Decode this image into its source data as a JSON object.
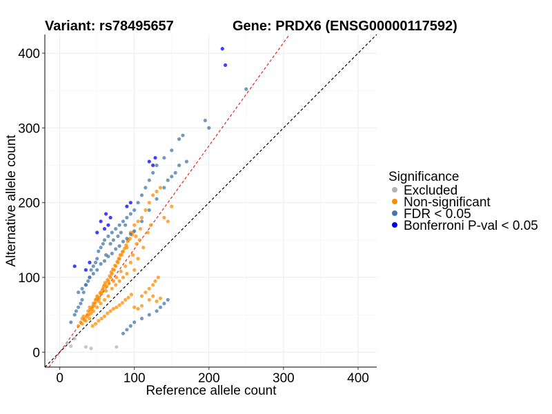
{
  "chart_data": {
    "type": "scatter",
    "titles": {
      "variant": "Variant: rs78495657",
      "gene": "Gene: PRDX6 (ENSG00000117592)"
    },
    "xlabel": "Reference allele count",
    "ylabel": "Alternative allele count",
    "xlim": [
      -20,
      425
    ],
    "ylim": [
      -20,
      425
    ],
    "x_ticks": [
      0,
      100,
      200,
      300,
      400
    ],
    "y_ticks": [
      0,
      100,
      200,
      300,
      400
    ],
    "grid": true,
    "reference_lines": [
      {
        "name": "identity",
        "slope": 1.0,
        "intercept": 0,
        "color": "#000000",
        "dash": "dashed"
      },
      {
        "name": "fit",
        "slope": 1.38,
        "intercept": 0,
        "color": "#e8231a",
        "dash": "dashed"
      }
    ],
    "legend": {
      "title": "Significance",
      "position": "right",
      "entries": [
        {
          "label": "Excluded",
          "color": "#b3b3b3"
        },
        {
          "label": "Non-significant",
          "color": "#ff8c00"
        },
        {
          "label": "FDR < 0.05",
          "color": "#4477aa"
        },
        {
          "label": "Bonferroni P-val < 0.05",
          "color": "#0000ff"
        }
      ]
    },
    "series": [
      {
        "name": "Excluded",
        "color": "#b3b3b3",
        "x": [
          35,
          42,
          76,
          10,
          20,
          15
        ],
        "y": [
          7,
          5,
          7,
          12,
          18,
          8
        ]
      },
      {
        "name": "Non-significant",
        "color": "#ff8c00",
        "x": [
          25,
          28,
          30,
          32,
          35,
          37,
          38,
          40,
          40,
          42,
          43,
          45,
          45,
          46,
          48,
          50,
          50,
          52,
          53,
          55,
          55,
          56,
          58,
          60,
          60,
          62,
          63,
          65,
          65,
          66,
          68,
          70,
          70,
          72,
          73,
          75,
          75,
          76,
          78,
          80,
          80,
          82,
          83,
          85,
          85,
          88,
          90,
          90,
          92,
          95,
          95,
          98,
          100,
          100,
          102,
          105,
          105,
          108,
          110,
          112,
          115,
          118,
          120,
          122,
          125,
          130,
          135,
          140,
          145,
          150,
          30,
          33,
          36,
          39,
          41,
          44,
          47,
          49,
          51,
          54,
          57,
          59,
          61,
          64,
          67,
          69,
          71,
          74,
          77,
          79,
          81,
          84,
          87,
          89,
          91,
          94,
          97,
          99,
          103,
          107,
          44,
          48,
          52,
          56,
          60,
          64,
          68,
          72,
          76,
          80,
          84,
          88,
          92,
          96,
          110,
          115,
          120,
          125,
          128,
          132,
          100,
          105,
          110,
          120,
          125,
          130,
          135
        ],
        "y": [
          35,
          40,
          45,
          48,
          42,
          50,
          55,
          60,
          45,
          52,
          58,
          65,
          55,
          62,
          70,
          60,
          75,
          68,
          72,
          80,
          65,
          78,
          85,
          70,
          90,
          82,
          88,
          95,
          75,
          92,
          100,
          85,
          105,
          95,
          110,
          90,
          115,
          100,
          120,
          95,
          125,
          108,
          130,
          100,
          135,
          115,
          140,
          105,
          150,
          120,
          160,
          130,
          170,
          110,
          155,
          175,
          125,
          165,
          180,
          140,
          190,
          160,
          200,
          170,
          210,
          215,
          220,
          180,
          175,
          195,
          38,
          43,
          47,
          50,
          57,
          61,
          66,
          71,
          74,
          79,
          83,
          88,
          93,
          97,
          102,
          107,
          111,
          116,
          121,
          125,
          130,
          134,
          139,
          143,
          148,
          152,
          157,
          161,
          145,
          150,
          35,
          38,
          42,
          45,
          48,
          52,
          55,
          58,
          60,
          63,
          66,
          70,
          73,
          77,
          75,
          80,
          85,
          90,
          95,
          100,
          60,
          58,
          62,
          70,
          75,
          68,
          72
        ]
      },
      {
        "name": "FDR < 0.05",
        "color": "#4477aa",
        "x": [
          15,
          20,
          22,
          25,
          28,
          30,
          32,
          35,
          38,
          40,
          42,
          45,
          48,
          50,
          52,
          55,
          58,
          60,
          62,
          65,
          68,
          70,
          72,
          75,
          78,
          80,
          82,
          85,
          88,
          90,
          95,
          100,
          105,
          110,
          115,
          120,
          125,
          130,
          140,
          150,
          160,
          165,
          170,
          195,
          200,
          250,
          25,
          30,
          35,
          40,
          45,
          50,
          55,
          60,
          65,
          70,
          75,
          80,
          85,
          90,
          95,
          100,
          110,
          120,
          130,
          140,
          145,
          150,
          155,
          160,
          135,
          140,
          145,
          130,
          120,
          110,
          100,
          95,
          90,
          85
        ],
        "y": [
          40,
          50,
          55,
          60,
          65,
          70,
          80,
          90,
          95,
          100,
          110,
          115,
          120,
          125,
          135,
          140,
          145,
          150,
          130,
          155,
          145,
          160,
          150,
          165,
          155,
          170,
          160,
          175,
          170,
          180,
          185,
          190,
          200,
          210,
          220,
          230,
          240,
          250,
          260,
          270,
          285,
          290,
          255,
          310,
          300,
          352,
          80,
          85,
          90,
          100,
          105,
          110,
          118,
          122,
          128,
          132,
          138,
          142,
          148,
          152,
          158,
          162,
          175,
          190,
          205,
          220,
          230,
          235,
          240,
          250,
          60,
          65,
          70,
          55,
          50,
          45,
          40,
          35,
          30,
          25
        ]
      },
      {
        "name": "Bonferroni P-val < 0.05",
        "color": "#0000ff",
        "x": [
          20,
          35,
          40,
          50,
          55,
          60,
          62,
          65,
          68,
          90,
          95,
          120,
          125,
          128,
          218,
          222
        ],
        "y": [
          115,
          110,
          120,
          160,
          175,
          165,
          185,
          170,
          180,
          195,
          200,
          255,
          250,
          260,
          406,
          384
        ]
      }
    ]
  }
}
